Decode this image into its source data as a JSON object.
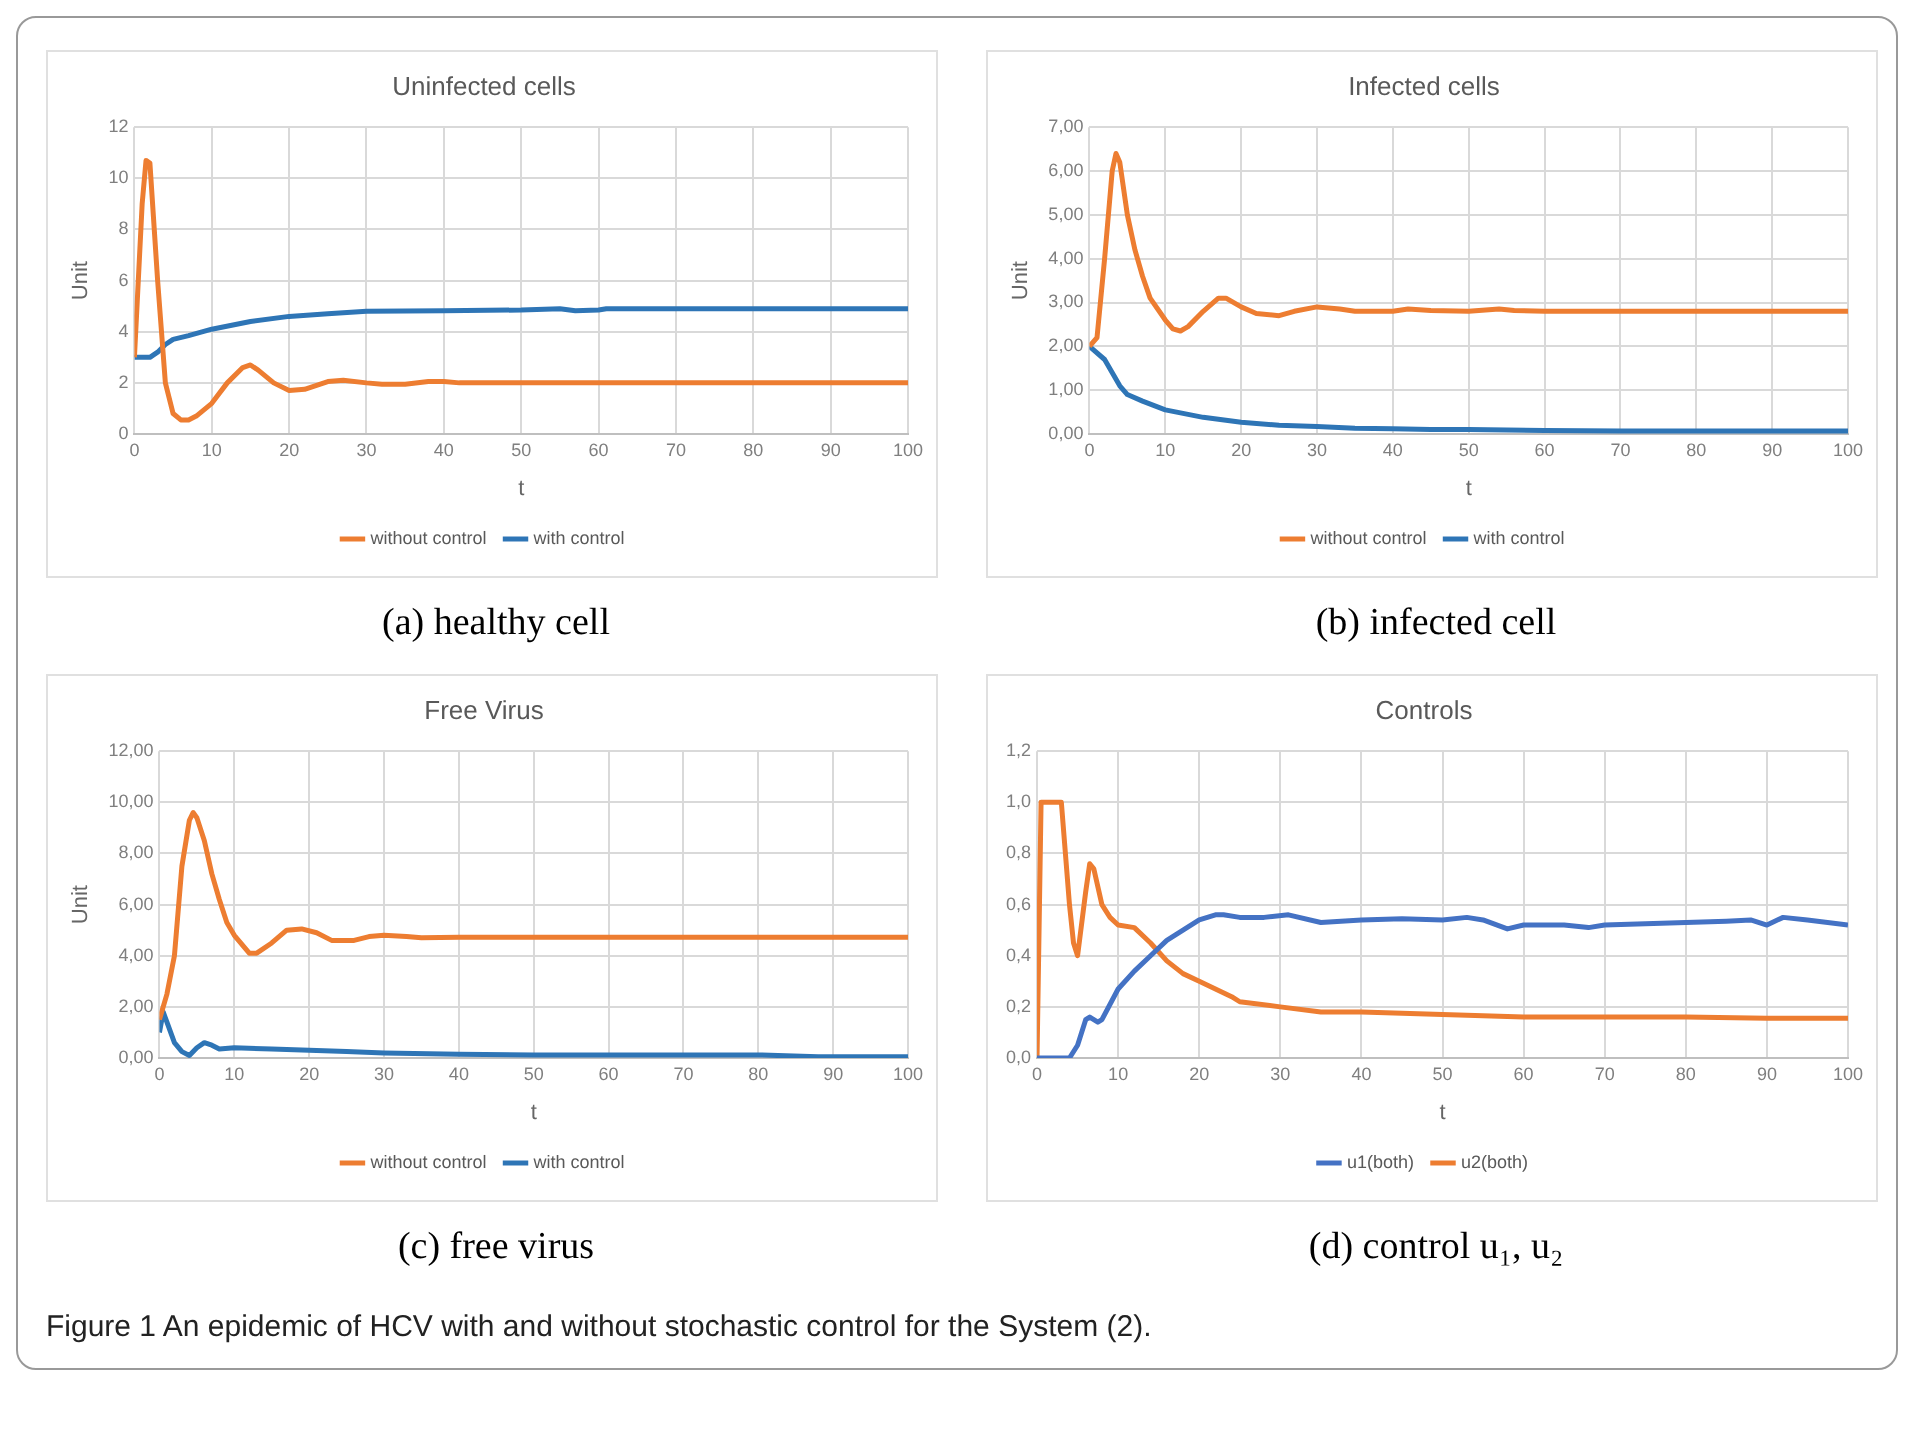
{
  "chart_data": [
    {
      "type": "line",
      "title": "Uninfected cells",
      "xlabel": "t",
      "ylabel": "Unit",
      "annotations": [
        "(a) healthy cell"
      ],
      "xlim": [
        0,
        100
      ],
      "xticks": [
        0,
        10,
        20,
        30,
        40,
        50,
        60,
        70,
        80,
        90,
        100
      ],
      "ylim": [
        0,
        12
      ],
      "yticks": [
        0,
        2,
        4,
        6,
        8,
        10,
        12
      ],
      "grid": true,
      "legend": "bottom",
      "series": [
        {
          "name": "without control",
          "color": "#ed7d31",
          "x": [
            0,
            1,
            1.5,
            2,
            3,
            4,
            5,
            6,
            7,
            8,
            10,
            12,
            14,
            15,
            16,
            18,
            20,
            22,
            25,
            27,
            30,
            32,
            35,
            38,
            40,
            42,
            50,
            60,
            70,
            80,
            90,
            100
          ],
          "values": [
            3,
            9,
            10.7,
            10.6,
            6,
            2,
            0.8,
            0.55,
            0.55,
            0.7,
            1.2,
            2,
            2.6,
            2.7,
            2.5,
            2,
            1.7,
            1.75,
            2.05,
            2.1,
            2,
            1.95,
            1.95,
            2.05,
            2.05,
            2,
            2,
            2,
            2,
            2,
            2,
            2
          ]
        },
        {
          "name": "with control",
          "color": "#2e75b6",
          "x": [
            0,
            2,
            3,
            4,
            5,
            7,
            10,
            15,
            20,
            25,
            30,
            40,
            50,
            55,
            57,
            60,
            61,
            70,
            80,
            90,
            100
          ],
          "values": [
            3,
            3,
            3.2,
            3.5,
            3.7,
            3.85,
            4.1,
            4.4,
            4.6,
            4.7,
            4.8,
            4.82,
            4.85,
            4.9,
            4.82,
            4.85,
            4.9,
            4.9,
            4.9,
            4.9,
            4.9
          ]
        }
      ]
    },
    {
      "type": "line",
      "title": "Infected cells",
      "xlabel": "t",
      "ylabel": "Unit",
      "annotations": [
        "(b) infected cell"
      ],
      "xlim": [
        0,
        100
      ],
      "xticks": [
        0,
        10,
        20,
        30,
        40,
        50,
        60,
        70,
        80,
        90,
        100
      ],
      "ylim": [
        0,
        7
      ],
      "yticks": [
        {
          "value": 0,
          "label": "0,00"
        },
        {
          "value": 1,
          "label": "1,00"
        },
        {
          "value": 2,
          "label": "2,00"
        },
        {
          "value": 3,
          "label": "3,00"
        },
        {
          "value": 4,
          "label": "4,00"
        },
        {
          "value": 5,
          "label": "5,00"
        },
        {
          "value": 6,
          "label": "6,00"
        },
        {
          "value": 7,
          "label": "7,00"
        }
      ],
      "grid": true,
      "legend": "bottom",
      "series": [
        {
          "name": "without control",
          "color": "#ed7d31",
          "x": [
            0,
            1,
            2,
            3,
            3.5,
            4,
            5,
            6,
            7,
            8,
            10,
            11,
            12,
            13,
            15,
            17,
            18,
            20,
            22,
            25,
            27,
            30,
            33,
            35,
            40,
            42,
            45,
            50,
            54,
            56,
            60,
            100
          ],
          "values": [
            2,
            2.2,
            4,
            6,
            6.4,
            6.2,
            5,
            4.2,
            3.6,
            3.1,
            2.6,
            2.4,
            2.35,
            2.45,
            2.8,
            3.1,
            3.1,
            2.9,
            2.75,
            2.7,
            2.8,
            2.9,
            2.85,
            2.8,
            2.8,
            2.85,
            2.82,
            2.8,
            2.85,
            2.82,
            2.8,
            2.8
          ]
        },
        {
          "name": "with control",
          "color": "#2e75b6",
          "x": [
            0,
            2,
            4,
            5,
            7,
            10,
            15,
            20,
            25,
            30,
            35,
            40,
            45,
            50,
            60,
            70,
            100
          ],
          "values": [
            2,
            1.7,
            1.1,
            0.9,
            0.75,
            0.55,
            0.38,
            0.27,
            0.2,
            0.17,
            0.13,
            0.12,
            0.1,
            0.1,
            0.08,
            0.07,
            0.07
          ]
        }
      ]
    },
    {
      "type": "line",
      "title": "Free Virus",
      "xlabel": "t",
      "ylabel": "Unit",
      "annotations": [
        "(c) free virus"
      ],
      "xlim": [
        0,
        100
      ],
      "xticks": [
        0,
        10,
        20,
        30,
        40,
        50,
        60,
        70,
        80,
        90,
        100
      ],
      "ylim": [
        0,
        12
      ],
      "yticks": [
        {
          "value": 0,
          "label": "0,00"
        },
        {
          "value": 2,
          "label": "2,00"
        },
        {
          "value": 4,
          "label": "4,00"
        },
        {
          "value": 6,
          "label": "6,00"
        },
        {
          "value": 8,
          "label": "8,00"
        },
        {
          "value": 10,
          "label": "10,00"
        },
        {
          "value": 12,
          "label": "12,00"
        }
      ],
      "grid": true,
      "legend": "bottom",
      "series": [
        {
          "name": "without control",
          "color": "#ed7d31",
          "x": [
            0,
            1,
            2,
            3,
            4,
            4.5,
            5,
            6,
            7,
            8,
            9,
            10,
            12,
            13,
            15,
            17,
            19,
            21,
            23,
            26,
            28,
            30,
            33,
            35,
            40,
            100
          ],
          "values": [
            1.5,
            2.5,
            4,
            7.5,
            9.3,
            9.6,
            9.4,
            8.5,
            7.2,
            6.2,
            5.3,
            4.8,
            4.1,
            4.1,
            4.5,
            5,
            5.05,
            4.9,
            4.6,
            4.6,
            4.75,
            4.8,
            4.75,
            4.7,
            4.72,
            4.72
          ]
        },
        {
          "name": "with control",
          "color": "#2e75b6",
          "x": [
            0,
            0.5,
            1,
            2,
            3,
            4,
            5,
            6,
            7,
            8,
            10,
            15,
            20,
            25,
            30,
            40,
            50,
            60,
            70,
            80,
            88,
            95,
            100
          ],
          "values": [
            1,
            1.8,
            1.4,
            0.6,
            0.25,
            0.1,
            0.4,
            0.6,
            0.5,
            0.35,
            0.4,
            0.35,
            0.3,
            0.25,
            0.2,
            0.15,
            0.12,
            0.12,
            0.12,
            0.12,
            0.05,
            0.05,
            0.05
          ]
        }
      ]
    },
    {
      "type": "line",
      "title": "Controls",
      "xlabel": "t",
      "annotations": [
        "(d) control u₁, u₂",
        "Figure 1  An epidemic of HCV with and without stochastic control for the System (2)."
      ],
      "xlim": [
        0,
        100
      ],
      "xticks": [
        0,
        10,
        20,
        30,
        40,
        50,
        60,
        70,
        80,
        90,
        100
      ],
      "ylim": [
        0,
        1.2
      ],
      "yticks": [
        {
          "value": 0,
          "label": "0,0"
        },
        {
          "value": 0.2,
          "label": "0,2"
        },
        {
          "value": 0.4,
          "label": "0,4"
        },
        {
          "value": 0.6,
          "label": "0,6"
        },
        {
          "value": 0.8,
          "label": "0,8"
        },
        {
          "value": 1,
          "label": "1,0"
        },
        {
          "value": 1.2,
          "label": "1,2"
        }
      ],
      "grid": true,
      "legend": "bottom",
      "series": [
        {
          "name": "u1(both)",
          "color": "#4472c4",
          "x": [
            0,
            4,
            5,
            6,
            6.5,
            7.5,
            8,
            10,
            12,
            14,
            16,
            18,
            20,
            22,
            23,
            25,
            28,
            31,
            35,
            40,
            45,
            50,
            53,
            55,
            58,
            60,
            65,
            68,
            70,
            75,
            80,
            85,
            88,
            90,
            92,
            95,
            100
          ],
          "values": [
            0,
            0,
            0.05,
            0.15,
            0.16,
            0.14,
            0.15,
            0.27,
            0.34,
            0.4,
            0.46,
            0.5,
            0.54,
            0.56,
            0.56,
            0.55,
            0.55,
            0.56,
            0.53,
            0.54,
            0.545,
            0.54,
            0.55,
            0.54,
            0.505,
            0.52,
            0.52,
            0.51,
            0.52,
            0.525,
            0.53,
            0.535,
            0.54,
            0.52,
            0.55,
            0.54,
            0.52
          ]
        },
        {
          "name": "u2(both)",
          "color": "#ed7d31",
          "x": [
            0,
            0.5,
            3,
            4,
            4.5,
            5,
            6,
            6.5,
            7,
            8,
            9,
            10,
            12,
            14,
            16,
            18,
            20,
            22,
            24,
            25,
            30,
            35,
            40,
            45,
            50,
            55,
            60,
            70,
            80,
            90,
            100
          ],
          "values": [
            0,
            1,
            1,
            0.6,
            0.45,
            0.4,
            0.65,
            0.76,
            0.74,
            0.6,
            0.55,
            0.52,
            0.51,
            0.45,
            0.38,
            0.33,
            0.3,
            0.27,
            0.24,
            0.22,
            0.2,
            0.18,
            0.18,
            0.175,
            0.17,
            0.165,
            0.16,
            0.16,
            0.16,
            0.155,
            0.155
          ]
        }
      ]
    }
  ]
}
